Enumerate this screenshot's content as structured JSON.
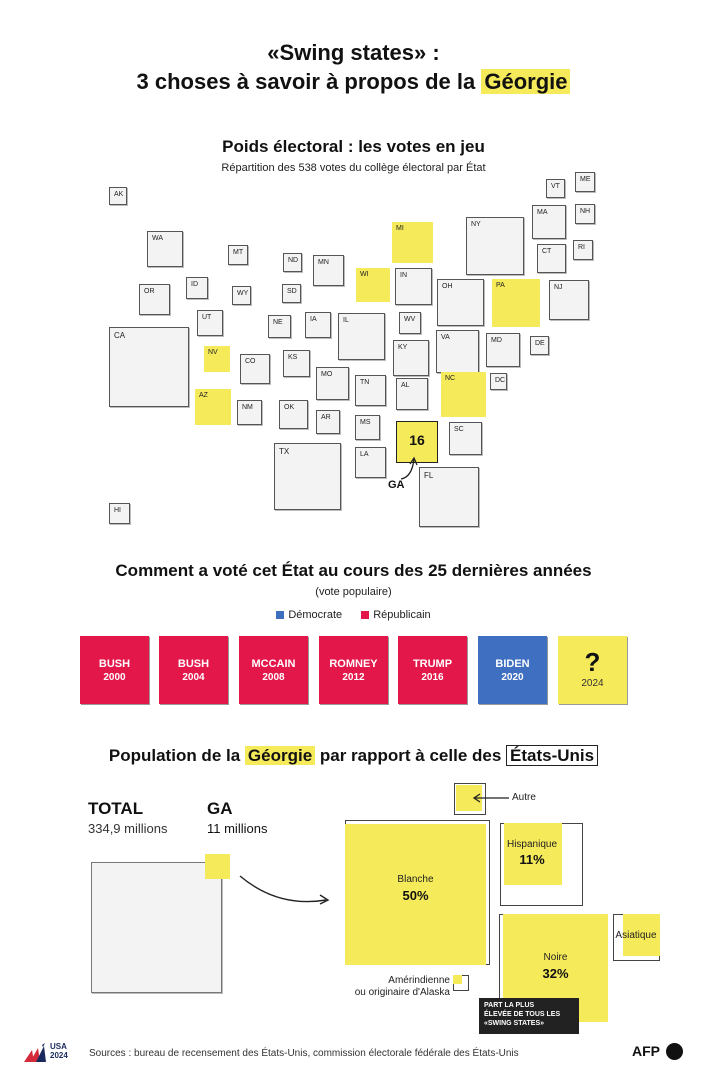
{
  "header": {
    "line1": "«Swing states» :",
    "line2_prefix": "3 choses à savoir à propos de la ",
    "line2_highlight": "Géorgie"
  },
  "map_section": {
    "title": "Poids électoral : les votes en jeu",
    "subtitle": "Répartition des 538 votes du collège électoral par État",
    "ga_votes": "16",
    "ga_label": "GA",
    "states": [
      "AK",
      "VT",
      "ME",
      "MA",
      "NH",
      "WA",
      "MT",
      "ND",
      "MN",
      "MI",
      "NY",
      "RI",
      "CT",
      "ID",
      "WY",
      "SD",
      "WI",
      "IN",
      "OH",
      "PA",
      "NJ",
      "OR",
      "UT",
      "NE",
      "IA",
      "IL",
      "WV",
      "VA",
      "MD",
      "DE",
      "CA",
      "NV",
      "CO",
      "KS",
      "MO",
      "KY",
      "TN",
      "NC",
      "DC",
      "AZ",
      "NM",
      "OK",
      "AR",
      "AL",
      "MS",
      "SC",
      "TX",
      "LA",
      "FL",
      "HI"
    ],
    "swing_states": [
      "MI",
      "WI",
      "PA",
      "NV",
      "AZ",
      "NC",
      "GA"
    ],
    "colors": {
      "swing": "#f5ea5a",
      "tile": "#f3f3f3"
    }
  },
  "votes_section": {
    "title": "Comment a voté cet État au cours des 25 dernières années",
    "subtitle": "(vote populaire)",
    "legend": [
      {
        "label": "Démocrate",
        "color": "#3f6fc0"
      },
      {
        "label": "Républicain",
        "color": "#e3174a"
      }
    ],
    "elections": [
      {
        "winner": "BUSH",
        "year": "2000",
        "party": "rep"
      },
      {
        "winner": "BUSH",
        "year": "2004",
        "party": "rep"
      },
      {
        "winner": "MCCAIN",
        "year": "2008",
        "party": "rep"
      },
      {
        "winner": "ROMNEY",
        "year": "2012",
        "party": "rep"
      },
      {
        "winner": "TRUMP",
        "year": "2016",
        "party": "rep"
      },
      {
        "winner": "BIDEN",
        "year": "2020",
        "party": "dem"
      },
      {
        "winner": "?",
        "year": "2024",
        "party": "unknown"
      }
    ]
  },
  "population_section": {
    "title_prefix": "Population de la ",
    "title_hl1": "Géorgie",
    "title_mid": " par rapport à celle des ",
    "title_hl2": "États-Unis",
    "total_label": "TOTAL",
    "total_value": "334,9 millions",
    "ga_label": "GA",
    "ga_value": "11 millions",
    "groups": {
      "autre": {
        "label": "Autre"
      },
      "blanche": {
        "label": "Blanche",
        "pct": "50%"
      },
      "hispanique": {
        "label": "Hispanique",
        "pct": "11%"
      },
      "noire": {
        "label": "Noire",
        "pct": "32%"
      },
      "asiatique": {
        "label": "Asiatique"
      },
      "amerindienne": {
        "label_line1": "Amérindienne",
        "label_line2": "ou originaire d'Alaska"
      }
    },
    "badge": [
      "PART LA PLUS",
      "ÉLEVÉE DE TOUS LES",
      "«SWING STATES»"
    ]
  },
  "footer": {
    "logo_line1": "USA",
    "logo_line2": "2024",
    "sources": "Sources : bureau de recensement des États-Unis, commission électorale fédérale des États-Unis",
    "agency": "AFP"
  }
}
